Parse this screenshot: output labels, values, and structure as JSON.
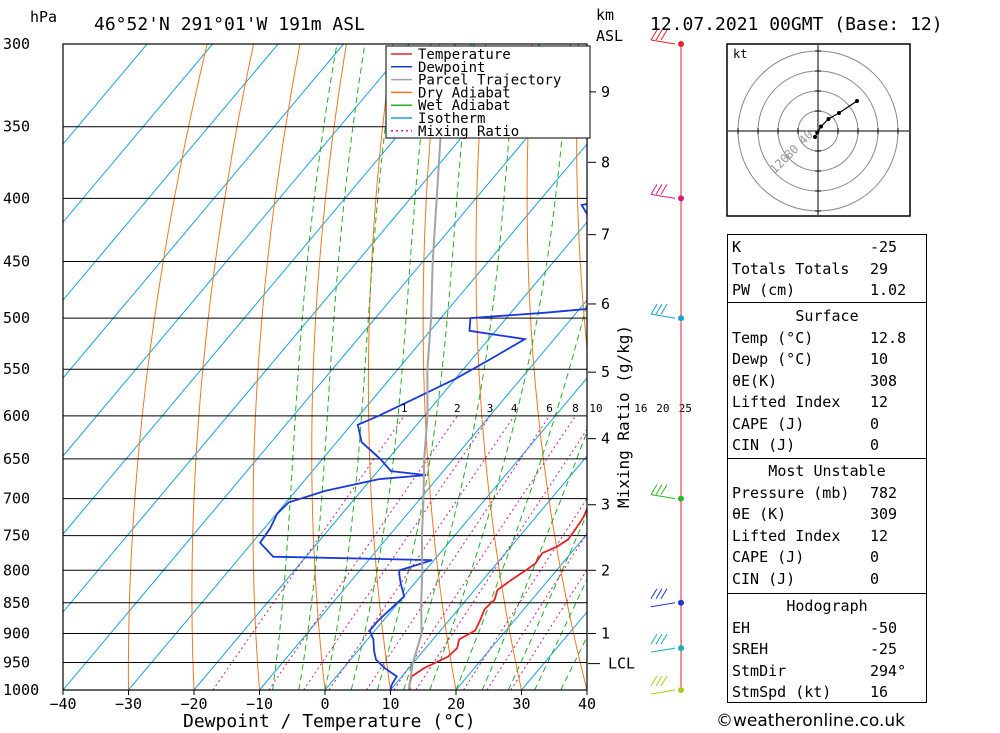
{
  "header": {
    "hpa_label": "hPa",
    "location": "46°52'N  291°01'W  191m  ASL",
    "km_label": "km",
    "asl_label": "ASL",
    "datetime": "12.07.2021  00GMT  (Base: 12)"
  },
  "chart_data": {
    "type": "skew-t",
    "xlabel": "Dewpoint / Temperature (°C)",
    "ylabel": "hPa",
    "xlim": [
      -40,
      40
    ],
    "ylim": [
      1000,
      300
    ],
    "pressure_ticks": [
      300,
      350,
      400,
      450,
      500,
      550,
      600,
      650,
      700,
      750,
      800,
      850,
      900,
      950,
      1000
    ],
    "temp_ticks": [
      -40,
      -30,
      -20,
      -10,
      0,
      10,
      20,
      30,
      40
    ],
    "km_ticks": [
      {
        "label": "1",
        "p": 900
      },
      {
        "label": "2",
        "p": 800
      },
      {
        "label": "3",
        "p": 708
      },
      {
        "label": "4",
        "p": 626
      },
      {
        "label": "5",
        "p": 553
      },
      {
        "label": "6",
        "p": 487
      },
      {
        "label": "7",
        "p": 428
      },
      {
        "label": "8",
        "p": 374
      },
      {
        "label": "9",
        "p": 328
      }
    ],
    "lcl": {
      "label": "LCL",
      "p": 952
    },
    "mixing_ratio_axis_label": "Mixing Ratio (g/kg)",
    "mixing_ratio_labels": [
      "1",
      "2",
      "3",
      "4",
      "6",
      "8",
      "10",
      "16",
      "20",
      "25"
    ],
    "legend": [
      "Temperature",
      "Dewpoint",
      "Parcel Trajectory",
      "Dry Adiabat",
      "Wet Adiabat",
      "Isotherm",
      "Mixing Ratio"
    ],
    "legend_position": "top-right",
    "series": [
      {
        "name": "Temperature",
        "color": "#e8202a",
        "points": [
          [
            1000,
            13.0
          ],
          [
            990,
            12.2
          ],
          [
            975,
            11.5
          ],
          [
            960,
            12.3
          ],
          [
            940,
            14.5
          ],
          [
            925,
            14.8
          ],
          [
            910,
            14.0
          ],
          [
            895,
            15.3
          ],
          [
            880,
            14.8
          ],
          [
            860,
            14.0
          ],
          [
            845,
            14.3
          ],
          [
            830,
            13.5
          ],
          [
            815,
            14.3
          ],
          [
            800,
            15.3
          ],
          [
            790,
            15.9
          ],
          [
            775,
            15.6
          ],
          [
            765,
            17.1
          ],
          [
            755,
            17.8
          ],
          [
            740,
            17.6
          ],
          [
            725,
            17.3
          ],
          [
            710,
            16.6
          ],
          [
            690,
            16.6
          ],
          [
            670,
            16.1
          ],
          [
            650,
            15.5
          ],
          [
            630,
            15.0
          ],
          [
            610,
            14.4
          ],
          [
            600,
            13.7
          ],
          [
            590,
            12.7
          ],
          [
            570,
            11.2
          ],
          [
            550,
            9.1
          ],
          [
            530,
            7.3
          ],
          [
            510,
            5.8
          ],
          [
            500,
            4.8
          ],
          [
            490,
            4.3
          ],
          [
            475,
            2.8
          ],
          [
            460,
            1.7
          ],
          [
            445,
            0.0
          ],
          [
            430,
            -1.5
          ],
          [
            425,
            -1.8
          ],
          [
            420,
            -0.9
          ],
          [
            405,
            -0.9
          ],
          [
            390,
            -2.7
          ],
          [
            375,
            -4.5
          ],
          [
            360,
            -5.2
          ],
          [
            345,
            -6.1
          ],
          [
            330,
            -7.5
          ],
          [
            315,
            -8.8
          ],
          [
            305,
            -9.5
          ],
          [
            300,
            -9.5
          ]
        ]
      },
      {
        "name": "Dewpoint",
        "color": "#1b38d8",
        "points": [
          [
            1000,
            10.0
          ],
          [
            990,
            9.5
          ],
          [
            975,
            9.2
          ],
          [
            960,
            6.3
          ],
          [
            945,
            3.9
          ],
          [
            930,
            2.5
          ],
          [
            910,
            0.9
          ],
          [
            895,
            -0.8
          ],
          [
            880,
            -0.8
          ],
          [
            860,
            -0.4
          ],
          [
            840,
            0.1
          ],
          [
            820,
            -2.1
          ],
          [
            805,
            -3.6
          ],
          [
            800,
            -4.0
          ],
          [
            795,
            -2.7
          ],
          [
            785,
            -0.3
          ],
          [
            780,
            -25.0
          ],
          [
            760,
            -28.8
          ],
          [
            740,
            -29.1
          ],
          [
            720,
            -29.9
          ],
          [
            705,
            -29.6
          ],
          [
            690,
            -25.5
          ],
          [
            675,
            -18.8
          ],
          [
            670,
            -12.1
          ],
          [
            665,
            -18.0
          ],
          [
            650,
            -21.2
          ],
          [
            630,
            -26.2
          ],
          [
            610,
            -29.0
          ],
          [
            600,
            -27.0
          ],
          [
            580,
            -23.5
          ],
          [
            560,
            -20.0
          ],
          [
            540,
            -17.2
          ],
          [
            520,
            -14.5
          ],
          [
            512,
            -24.0
          ],
          [
            500,
            -25.5
          ],
          [
            495,
            -14.7
          ],
          [
            488,
            -3.0
          ],
          [
            480,
            -2.6
          ],
          [
            470,
            -3.8
          ],
          [
            460,
            -7.2
          ],
          [
            450,
            -9.0
          ],
          [
            440,
            -6.5
          ],
          [
            430,
            -5.9
          ],
          [
            420,
            -19.0
          ],
          [
            412,
            -21.0
          ],
          [
            405,
            -23.0
          ],
          [
            395,
            -14.0
          ],
          [
            380,
            -6.6
          ],
          [
            370,
            -8.7
          ],
          [
            355,
            -10.5
          ],
          [
            330,
            -13.7
          ],
          [
            315,
            -3.5
          ],
          [
            305,
            -6.0
          ],
          [
            300,
            -7.8
          ]
        ]
      },
      {
        "name": "Parcel Trajectory",
        "color": "#a3a3a3",
        "points": [
          [
            1000,
            12.8
          ],
          [
            952,
            10.0
          ],
          [
            900,
            7.5
          ],
          [
            850,
            3.5
          ],
          [
            800,
            -0.5
          ],
          [
            750,
            -5.0
          ],
          [
            700,
            -9.5
          ],
          [
            650,
            -14.5
          ],
          [
            600,
            -19.5
          ],
          [
            550,
            -25.5
          ],
          [
            500,
            -31.5
          ],
          [
            450,
            -38.5
          ],
          [
            400,
            -46.0
          ],
          [
            350,
            -54.5
          ],
          [
            300,
            -63.0
          ]
        ]
      }
    ],
    "mixing_ratio_g_per_kg": [
      1,
      2,
      3,
      4,
      6,
      8,
      10,
      16,
      20,
      25
    ],
    "dry_adiabats_theta_C": [
      -30,
      -20,
      -10,
      0,
      10,
      20,
      30,
      40,
      50,
      60,
      70,
      80,
      90,
      100,
      110,
      120,
      130,
      140,
      150
    ],
    "wet_adiabats_start_T_C": [
      -8,
      -4,
      0,
      4,
      8,
      12,
      16,
      20,
      24,
      28,
      32,
      36
    ],
    "wind_barbs": [
      {
        "p": 300,
        "color": "#e8202a"
      },
      {
        "p": 400,
        "color": "#d0207a"
      },
      {
        "p": 500,
        "color": "#1aa0d8"
      },
      {
        "p": 700,
        "color": "#28b828"
      },
      {
        "p": 850,
        "color": "#1b38d8"
      },
      {
        "p": 925,
        "color": "#18b0b0"
      },
      {
        "p": 1000,
        "color": "#a0d020"
      }
    ],
    "hodograph": {
      "unit_label": "kt",
      "ring_labels": [
        "40",
        "80",
        "120"
      ],
      "trace": [
        [
          -4,
          -8
        ],
        [
          -1,
          -2
        ],
        [
          4,
          6
        ],
        [
          14,
          16
        ],
        [
          28,
          24
        ],
        [
          52,
          40
        ]
      ]
    }
  },
  "indices": {
    "rows": [
      {
        "label": "K",
        "value": "-25"
      },
      {
        "label": "Totals Totals",
        "value": "29"
      },
      {
        "label": "PW (cm)",
        "value": "1.02"
      }
    ]
  },
  "surface": {
    "title": "Surface",
    "rows": [
      {
        "label": "Temp (°C)",
        "value": "12.8"
      },
      {
        "label": "Dewp (°C)",
        "value": "10"
      },
      {
        "label": "θE(K)",
        "value": "308"
      },
      {
        "label": "Lifted Index",
        "value": "12"
      },
      {
        "label": "CAPE (J)",
        "value": "0"
      },
      {
        "label": "CIN (J)",
        "value": "0"
      }
    ]
  },
  "most_unstable": {
    "title": "Most Unstable",
    "rows": [
      {
        "label": "Pressure (mb)",
        "value": "782"
      },
      {
        "label": "θE (K)",
        "value": "309"
      },
      {
        "label": "Lifted Index",
        "value": "12"
      },
      {
        "label": "CAPE (J)",
        "value": "0"
      },
      {
        "label": "CIN (J)",
        "value": "0"
      }
    ]
  },
  "hodograph_table": {
    "title": "Hodograph",
    "rows": [
      {
        "label": "EH",
        "value": "-50"
      },
      {
        "label": "SREH",
        "value": "-25"
      },
      {
        "label": "StmDir",
        "value": "294°"
      },
      {
        "label": "StmSpd (kt)",
        "value": "16"
      }
    ]
  },
  "footer": {
    "copyright": "©weatheronline.co.uk"
  }
}
